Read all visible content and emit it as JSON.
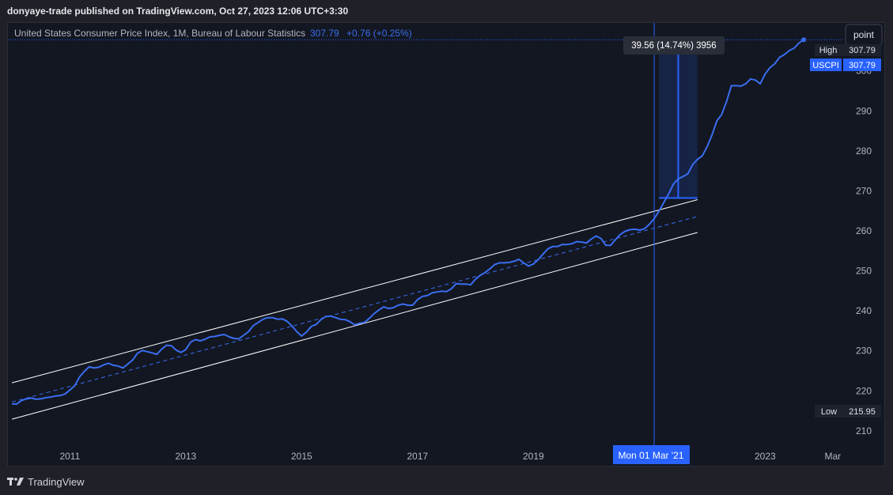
{
  "header": {
    "published": "donyaye-trade published on TradingView.com, Oct 27, 2023 12:06 UTC+3:30"
  },
  "legend": {
    "symbol": "United States Consumer Price Index, 1M, Bureau of Labour Statistics",
    "last": "307.79",
    "change": "+0.76 (+0.25%)"
  },
  "toolbar": {
    "mode_button": "point"
  },
  "price_labels": {
    "high_label": "High",
    "high_value": "307.79",
    "symbol_tag": "USCPI",
    "last_value": "307.79",
    "low_label": "Low",
    "low_value": "215.95"
  },
  "measure": {
    "label": "39.56 (14.74%) 3956"
  },
  "crosshair": {
    "date_label": "Mon 01 Mar '21"
  },
  "footer": {
    "brand": "TradingView"
  },
  "colors": {
    "series": "#3a6df0",
    "crosshair": "#2962ff",
    "channel": "#ffffff",
    "background": "#131722"
  },
  "chart_data": {
    "type": "line",
    "series": [
      {
        "name": "USCPI",
        "points": [
          [
            "2010-01",
            216.7
          ],
          [
            "2010-02",
            216.7
          ],
          [
            "2010-03",
            217.6
          ],
          [
            "2010-04",
            218.0
          ],
          [
            "2010-05",
            218.2
          ],
          [
            "2010-06",
            217.9
          ],
          [
            "2010-07",
            218.0
          ],
          [
            "2010-08",
            218.3
          ],
          [
            "2010-09",
            218.4
          ],
          [
            "2010-10",
            218.7
          ],
          [
            "2010-11",
            218.8
          ],
          [
            "2010-12",
            219.2
          ],
          [
            "2011-01",
            220.2
          ],
          [
            "2011-02",
            221.3
          ],
          [
            "2011-03",
            223.5
          ],
          [
            "2011-04",
            224.9
          ],
          [
            "2011-05",
            226.0
          ],
          [
            "2011-06",
            225.7
          ],
          [
            "2011-07",
            225.9
          ],
          [
            "2011-08",
            226.5
          ],
          [
            "2011-09",
            226.9
          ],
          [
            "2011-10",
            226.4
          ],
          [
            "2011-11",
            226.2
          ],
          [
            "2011-12",
            225.7
          ],
          [
            "2012-01",
            226.7
          ],
          [
            "2012-02",
            227.7
          ],
          [
            "2012-03",
            229.4
          ],
          [
            "2012-04",
            230.1
          ],
          [
            "2012-05",
            229.8
          ],
          [
            "2012-06",
            229.5
          ],
          [
            "2012-07",
            229.1
          ],
          [
            "2012-08",
            230.4
          ],
          [
            "2012-09",
            231.4
          ],
          [
            "2012-10",
            231.3
          ],
          [
            "2012-11",
            230.2
          ],
          [
            "2012-12",
            229.6
          ],
          [
            "2013-01",
            230.3
          ],
          [
            "2013-02",
            232.2
          ],
          [
            "2013-03",
            232.8
          ],
          [
            "2013-04",
            232.5
          ],
          [
            "2013-05",
            232.9
          ],
          [
            "2013-06",
            233.5
          ],
          [
            "2013-07",
            233.6
          ],
          [
            "2013-08",
            233.9
          ],
          [
            "2013-09",
            234.1
          ],
          [
            "2013-10",
            233.5
          ],
          [
            "2013-11",
            233.1
          ],
          [
            "2013-12",
            233.0
          ],
          [
            "2014-01",
            233.9
          ],
          [
            "2014-02",
            234.8
          ],
          [
            "2014-03",
            236.3
          ],
          [
            "2014-04",
            237.1
          ],
          [
            "2014-05",
            237.9
          ],
          [
            "2014-06",
            238.3
          ],
          [
            "2014-07",
            238.3
          ],
          [
            "2014-08",
            237.9
          ],
          [
            "2014-09",
            238.0
          ],
          [
            "2014-10",
            237.4
          ],
          [
            "2014-11",
            236.2
          ],
          [
            "2014-12",
            234.8
          ],
          [
            "2015-01",
            233.7
          ],
          [
            "2015-02",
            234.7
          ],
          [
            "2015-03",
            236.1
          ],
          [
            "2015-04",
            236.6
          ],
          [
            "2015-05",
            237.8
          ],
          [
            "2015-06",
            238.6
          ],
          [
            "2015-07",
            238.7
          ],
          [
            "2015-08",
            238.3
          ],
          [
            "2015-09",
            237.9
          ],
          [
            "2015-10",
            237.8
          ],
          [
            "2015-11",
            237.3
          ],
          [
            "2015-12",
            236.5
          ],
          [
            "2016-01",
            236.9
          ],
          [
            "2016-02",
            237.1
          ],
          [
            "2016-03",
            238.1
          ],
          [
            "2016-04",
            239.3
          ],
          [
            "2016-05",
            240.2
          ],
          [
            "2016-06",
            241.0
          ],
          [
            "2016-07",
            240.6
          ],
          [
            "2016-08",
            240.8
          ],
          [
            "2016-09",
            241.4
          ],
          [
            "2016-10",
            241.7
          ],
          [
            "2016-11",
            241.4
          ],
          [
            "2016-12",
            241.4
          ],
          [
            "2017-01",
            242.8
          ],
          [
            "2017-02",
            243.6
          ],
          [
            "2017-03",
            243.8
          ],
          [
            "2017-04",
            244.5
          ],
          [
            "2017-05",
            244.7
          ],
          [
            "2017-06",
            244.9
          ],
          [
            "2017-07",
            244.8
          ],
          [
            "2017-08",
            245.5
          ],
          [
            "2017-09",
            246.8
          ],
          [
            "2017-10",
            246.7
          ],
          [
            "2017-11",
            246.7
          ],
          [
            "2017-12",
            246.5
          ],
          [
            "2018-01",
            247.9
          ],
          [
            "2018-02",
            248.9
          ],
          [
            "2018-03",
            249.6
          ],
          [
            "2018-04",
            250.5
          ],
          [
            "2018-05",
            251.6
          ],
          [
            "2018-06",
            252.0
          ],
          [
            "2018-07",
            252.0
          ],
          [
            "2018-08",
            252.1
          ],
          [
            "2018-09",
            252.4
          ],
          [
            "2018-10",
            252.9
          ],
          [
            "2018-11",
            252.0
          ],
          [
            "2018-12",
            251.2
          ],
          [
            "2019-01",
            251.7
          ],
          [
            "2019-02",
            252.8
          ],
          [
            "2019-03",
            254.2
          ],
          [
            "2019-04",
            255.5
          ],
          [
            "2019-05",
            256.1
          ],
          [
            "2019-06",
            256.1
          ],
          [
            "2019-07",
            256.6
          ],
          [
            "2019-08",
            256.6
          ],
          [
            "2019-09",
            256.8
          ],
          [
            "2019-10",
            257.3
          ],
          [
            "2019-11",
            257.2
          ],
          [
            "2019-12",
            256.97
          ],
          [
            "2020-01",
            257.97
          ],
          [
            "2020-02",
            258.7
          ],
          [
            "2020-03",
            258.1
          ],
          [
            "2020-04",
            256.4
          ],
          [
            "2020-05",
            256.4
          ],
          [
            "2020-06",
            257.8
          ],
          [
            "2020-07",
            259.1
          ],
          [
            "2020-08",
            259.9
          ],
          [
            "2020-09",
            260.3
          ],
          [
            "2020-10",
            260.4
          ],
          [
            "2020-11",
            260.2
          ],
          [
            "2020-12",
            260.5
          ],
          [
            "2021-01",
            261.6
          ],
          [
            "2021-02",
            263.0
          ],
          [
            "2021-03",
            264.9
          ],
          [
            "2021-04",
            267.1
          ],
          [
            "2021-05",
            269.2
          ],
          [
            "2021-06",
            271.7
          ],
          [
            "2021-07",
            273.0
          ],
          [
            "2021-08",
            273.6
          ],
          [
            "2021-09",
            274.3
          ],
          [
            "2021-10",
            276.6
          ],
          [
            "2021-11",
            277.9
          ],
          [
            "2021-12",
            278.8
          ],
          [
            "2022-01",
            281.1
          ],
          [
            "2022-02",
            284.0
          ],
          [
            "2022-03",
            287.5
          ],
          [
            "2022-04",
            289.1
          ],
          [
            "2022-05",
            292.3
          ],
          [
            "2022-06",
            296.3
          ],
          [
            "2022-07",
            296.3
          ],
          [
            "2022-08",
            296.2
          ],
          [
            "2022-09",
            296.8
          ],
          [
            "2022-10",
            298.0
          ],
          [
            "2022-11",
            297.7
          ],
          [
            "2022-12",
            296.8
          ],
          [
            "2023-01",
            299.2
          ],
          [
            "2023-02",
            300.8
          ],
          [
            "2023-03",
            301.8
          ],
          [
            "2023-04",
            303.4
          ],
          [
            "2023-05",
            304.1
          ],
          [
            "2023-06",
            305.1
          ],
          [
            "2023-07",
            305.7
          ],
          [
            "2023-08",
            307.0
          ],
          [
            "2023-09",
            307.79
          ]
        ]
      }
    ],
    "x_tick_labels": [
      "2011",
      "2013",
      "2015",
      "2017",
      "2019",
      "Mar '21",
      "2023",
      "Mar"
    ],
    "y_ticks": [
      210,
      220,
      230,
      240,
      250,
      260,
      270,
      280,
      290,
      300
    ],
    "ylim": [
      207,
      312
    ],
    "xlim": [
      "2009-12",
      "2024-05"
    ],
    "grid": false,
    "channel": {
      "start": "2010-01",
      "end": "2021-11",
      "upper": [
        222.0,
        267.8
      ],
      "middle": [
        217.2,
        263.6
      ],
      "lower": [
        212.9,
        259.6
      ]
    },
    "measure_range": {
      "start": "2021-03",
      "end": "2021-11",
      "from": 268.23,
      "to": 307.79
    },
    "high": 307.79,
    "low": 215.95
  }
}
